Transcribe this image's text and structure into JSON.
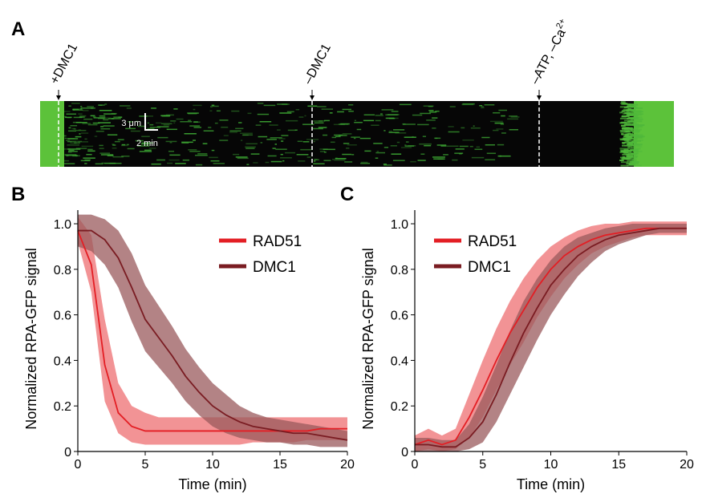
{
  "kymograph": {
    "panel_label": "A",
    "events": [
      {
        "text": "+DMC1"
      },
      {
        "text": "–DMC1"
      },
      {
        "text": "–ATP, –Ca",
        "superscript": "2+"
      }
    ],
    "scale_length": "3 μm",
    "scale_time": "2 min"
  },
  "chart_data": [
    {
      "type": "line",
      "panel_label": "B",
      "x_label": "Time (min)",
      "y_label": "Normalized RPA-GFP signal",
      "x": [
        0,
        1,
        2,
        3,
        4,
        5,
        6,
        7,
        8,
        9,
        10,
        11,
        12,
        13,
        14,
        15,
        16,
        17,
        18,
        19,
        20
      ],
      "xlim": [
        0,
        20
      ],
      "ylim": [
        0,
        1.06
      ],
      "xticks": [
        0,
        5,
        10,
        15,
        20
      ],
      "yticks": [
        0,
        0.2,
        0.4,
        0.6,
        0.8,
        {
          "value": 1,
          "label": "1.0"
        }
      ],
      "legend": "upper right",
      "series": [
        {
          "name": "RAD51",
          "color": "#e31e24",
          "band_color": "#ee6f72",
          "values": [
            0.97,
            0.82,
            0.38,
            0.17,
            0.11,
            0.09,
            0.09,
            0.09,
            0.09,
            0.09,
            0.09,
            0.09,
            0.09,
            0.09,
            0.09,
            0.09,
            0.09,
            0.09,
            0.1,
            0.1,
            0.1
          ],
          "lower": [
            0.92,
            0.7,
            0.22,
            0.08,
            0.04,
            0.03,
            0.03,
            0.03,
            0.03,
            0.03,
            0.03,
            0.03,
            0.03,
            0.04,
            0.04,
            0.04,
            0.04,
            0.05,
            0.05,
            0.05,
            0.05
          ],
          "upper": [
            1.03,
            0.95,
            0.58,
            0.3,
            0.2,
            0.17,
            0.15,
            0.15,
            0.15,
            0.15,
            0.15,
            0.15,
            0.15,
            0.15,
            0.15,
            0.15,
            0.15,
            0.15,
            0.15,
            0.15,
            0.15
          ]
        },
        {
          "name": "DMC1",
          "color": "#7a1c22",
          "band_color": "#9a5a5c",
          "values": [
            0.97,
            0.97,
            0.93,
            0.85,
            0.72,
            0.58,
            0.5,
            0.42,
            0.33,
            0.26,
            0.2,
            0.16,
            0.13,
            0.11,
            0.1,
            0.09,
            0.08,
            0.08,
            0.07,
            0.06,
            0.05
          ],
          "lower": [
            0.9,
            0.88,
            0.82,
            0.72,
            0.57,
            0.44,
            0.37,
            0.3,
            0.22,
            0.16,
            0.11,
            0.08,
            0.06,
            0.05,
            0.04,
            0.04,
            0.03,
            0.03,
            0.02,
            0.02,
            0.02
          ],
          "upper": [
            1.04,
            1.04,
            1.02,
            0.97,
            0.87,
            0.73,
            0.64,
            0.55,
            0.45,
            0.37,
            0.3,
            0.25,
            0.2,
            0.17,
            0.15,
            0.14,
            0.13,
            0.12,
            0.11,
            0.1,
            0.09
          ]
        }
      ]
    },
    {
      "type": "line",
      "panel_label": "C",
      "x_label": "Time (min)",
      "y_label": "Normalized RPA-GFP signal",
      "x": [
        0,
        1,
        2,
        3,
        4,
        5,
        6,
        7,
        8,
        9,
        10,
        11,
        12,
        13,
        14,
        15,
        16,
        17,
        18,
        19,
        20
      ],
      "xlim": [
        0,
        20
      ],
      "ylim": [
        0,
        1.06
      ],
      "xticks": [
        0,
        5,
        10,
        15,
        20
      ],
      "yticks": [
        0,
        0.2,
        0.4,
        0.6,
        0.8,
        {
          "value": 1,
          "label": "1.0"
        }
      ],
      "legend": "upper left",
      "series": [
        {
          "name": "RAD51",
          "color": "#e31e24",
          "band_color": "#ee6f72",
          "values": [
            0.03,
            0.05,
            0.03,
            0.05,
            0.15,
            0.27,
            0.4,
            0.52,
            0.62,
            0.72,
            0.8,
            0.86,
            0.9,
            0.93,
            0.95,
            0.96,
            0.97,
            0.98,
            0.98,
            0.98,
            0.98
          ],
          "lower": [
            0.0,
            0.01,
            0.0,
            0.01,
            0.06,
            0.15,
            0.27,
            0.38,
            0.48,
            0.59,
            0.68,
            0.76,
            0.82,
            0.87,
            0.9,
            0.92,
            0.94,
            0.95,
            0.95,
            0.95,
            0.95
          ],
          "upper": [
            0.07,
            0.1,
            0.07,
            0.1,
            0.25,
            0.4,
            0.54,
            0.66,
            0.76,
            0.84,
            0.9,
            0.94,
            0.97,
            0.99,
            1.0,
            1.0,
            1.01,
            1.01,
            1.01,
            1.01,
            1.01
          ]
        },
        {
          "name": "DMC1",
          "color": "#7a1c22",
          "band_color": "#9a5a5c",
          "values": [
            0.03,
            0.03,
            0.02,
            0.02,
            0.06,
            0.13,
            0.25,
            0.39,
            0.52,
            0.63,
            0.73,
            0.8,
            0.86,
            0.9,
            0.93,
            0.95,
            0.96,
            0.97,
            0.98,
            0.98,
            0.98
          ],
          "lower": [
            0.0,
            0.0,
            0.0,
            0.0,
            0.01,
            0.04,
            0.13,
            0.25,
            0.37,
            0.49,
            0.6,
            0.69,
            0.77,
            0.83,
            0.88,
            0.91,
            0.93,
            0.95,
            0.96,
            0.96,
            0.96
          ],
          "upper": [
            0.06,
            0.06,
            0.05,
            0.05,
            0.12,
            0.24,
            0.38,
            0.53,
            0.66,
            0.76,
            0.84,
            0.9,
            0.94,
            0.96,
            0.98,
            0.99,
            1.0,
            1.0,
            1.0,
            1.0,
            1.0
          ]
        }
      ]
    }
  ]
}
